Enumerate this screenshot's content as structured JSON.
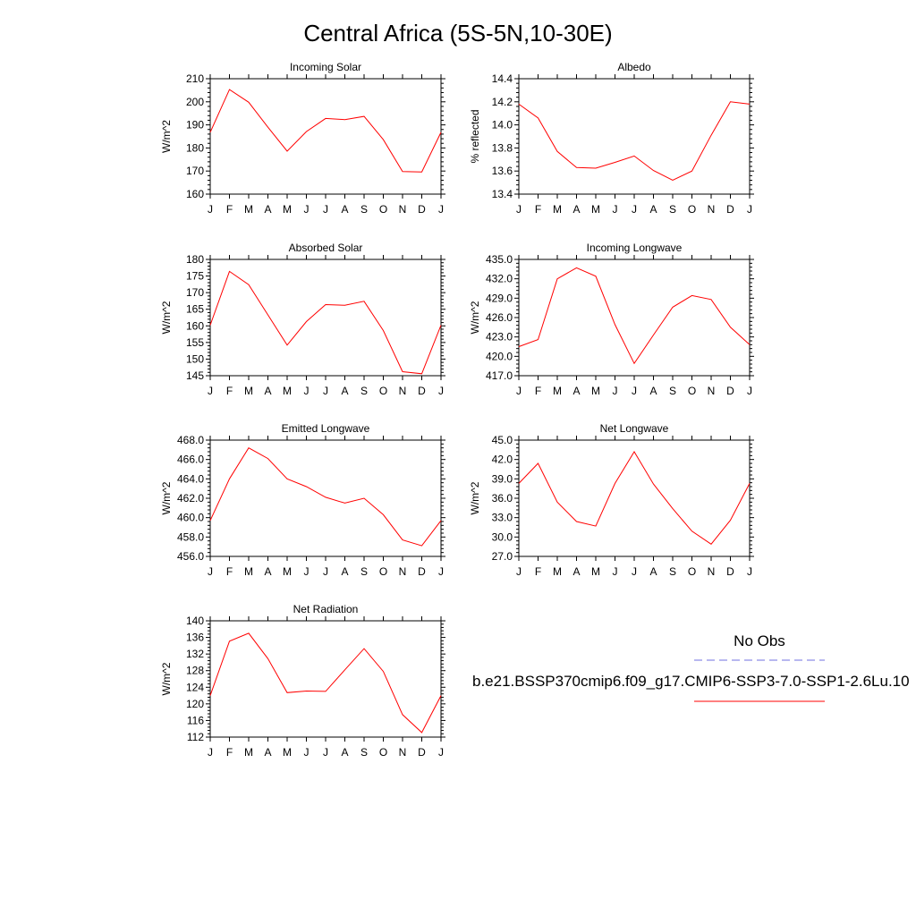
{
  "page_title": "Central Africa (5S-5N,10-30E)",
  "months": [
    "J",
    "F",
    "M",
    "A",
    "M",
    "J",
    "J",
    "A",
    "S",
    "O",
    "N",
    "D",
    "J"
  ],
  "legend": {
    "obs_label": "No Obs",
    "model_label": "b.e21.BSSP370cmip6.f09_g17.CMIP6-SSP3-7.0-SSP1-2.6Lu.10",
    "obs_color": "#7070e0",
    "model_color": "#ff0000"
  },
  "chart_data": [
    {
      "type": "line",
      "title": "Incoming Solar",
      "ylabel": "W/m^2",
      "ylim": [
        160,
        210
      ],
      "yticks": [
        "160",
        "170",
        "180",
        "190",
        "200",
        "210"
      ],
      "series": [
        {
          "values": [
            186.8,
            205.3,
            199.8,
            189.0,
            178.6,
            187.1,
            192.8,
            192.3,
            193.7,
            183.6,
            169.8,
            169.6,
            186.8
          ]
        }
      ]
    },
    {
      "type": "line",
      "title": "Albedo",
      "ylabel": "% reflected",
      "ylim": [
        13.4,
        14.4
      ],
      "yticks": [
        "13.4",
        "13.6",
        "13.8",
        "14.0",
        "14.2",
        "14.4"
      ],
      "series": [
        {
          "values": [
            14.18,
            14.06,
            13.77,
            13.63,
            13.625,
            13.675,
            13.73,
            13.605,
            13.52,
            13.6,
            13.91,
            14.2,
            14.18
          ]
        }
      ]
    },
    {
      "type": "line",
      "title": "Absorbed Solar",
      "ylabel": "W/m^2",
      "ylim": [
        145,
        180
      ],
      "yticks": [
        "145",
        "150",
        "155",
        "160",
        "165",
        "170",
        "175",
        "180"
      ],
      "series": [
        {
          "values": [
            160.2,
            176.4,
            172.4,
            163.3,
            154.2,
            161.3,
            166.4,
            166.2,
            167.4,
            158.6,
            146.2,
            145.6,
            160.2
          ]
        }
      ]
    },
    {
      "type": "line",
      "title": "Incoming Longwave",
      "ylabel": "W/m^2",
      "ylim": [
        417.0,
        435.0
      ],
      "yticks": [
        "417.0",
        "420.0",
        "423.0",
        "426.0",
        "429.0",
        "432.0",
        "435.0"
      ],
      "series": [
        {
          "values": [
            421.5,
            422.6,
            432.0,
            433.7,
            432.4,
            424.9,
            418.9,
            423.3,
            427.6,
            429.4,
            428.8,
            424.5,
            421.8
          ]
        }
      ]
    },
    {
      "type": "line",
      "title": "Emitted Longwave",
      "ylabel": "W/m^2",
      "ylim": [
        456.0,
        468.0
      ],
      "yticks": [
        "456.0",
        "458.0",
        "460.0",
        "462.0",
        "464.0",
        "466.0",
        "468.0"
      ],
      "series": [
        {
          "values": [
            459.7,
            464.0,
            467.2,
            466.1,
            464.0,
            463.2,
            462.1,
            461.5,
            462.0,
            460.3,
            457.7,
            457.1,
            459.7
          ]
        }
      ]
    },
    {
      "type": "line",
      "title": "Net Longwave",
      "ylabel": "W/m^2",
      "ylim": [
        27.0,
        45.0
      ],
      "yticks": [
        "27.0",
        "30.0",
        "33.0",
        "36.0",
        "39.0",
        "42.0",
        "45.0"
      ],
      "series": [
        {
          "values": [
            38.3,
            41.4,
            35.4,
            32.4,
            31.7,
            38.3,
            43.2,
            38.2,
            34.4,
            30.9,
            28.9,
            32.6,
            38.3
          ]
        }
      ]
    },
    {
      "type": "line",
      "title": "Net Radiation",
      "ylabel": "W/m^2",
      "ylim": [
        112,
        140
      ],
      "yticks": [
        "112",
        "116",
        "120",
        "124",
        "128",
        "132",
        "136",
        "140"
      ],
      "series": [
        {
          "values": [
            122.0,
            135.1,
            137.0,
            130.9,
            122.7,
            123.1,
            123.0,
            128.2,
            133.3,
            127.8,
            117.4,
            113.1,
            122.0
          ]
        }
      ]
    }
  ]
}
